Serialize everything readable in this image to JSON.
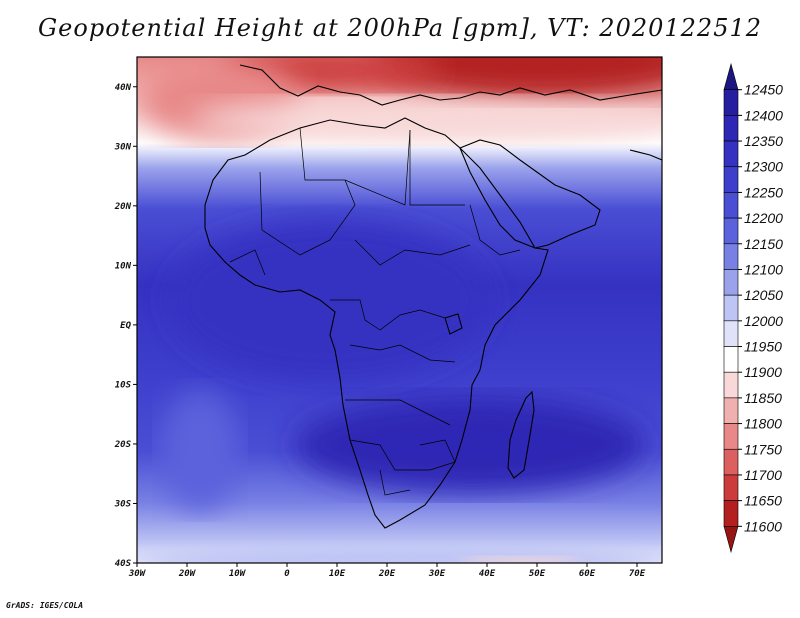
{
  "title": "Geopotential Height at 200hPa [gpm], VT: 2020122512",
  "footer": "GrADS: IGES/COLA",
  "map": {
    "lon_range": [
      -30,
      75
    ],
    "lat_range": [
      -40,
      45
    ],
    "x_ticks": [
      "30W",
      "20W",
      "10W",
      "0",
      "10E",
      "20E",
      "30E",
      "40E",
      "50E",
      "60E",
      "70E"
    ],
    "x_tick_values": [
      -30,
      -20,
      -10,
      0,
      10,
      20,
      30,
      40,
      50,
      60,
      70
    ],
    "y_ticks": [
      "40N",
      "30N",
      "20N",
      "10N",
      "EQ",
      "10S",
      "20S",
      "30S",
      "40S"
    ],
    "y_tick_values": [
      40,
      30,
      20,
      10,
      0,
      -10,
      -20,
      -30,
      -40
    ]
  },
  "colorbar": {
    "levels": [
      "12450",
      "12400",
      "12350",
      "12300",
      "12250",
      "12200",
      "12150",
      "12100",
      "12050",
      "12000",
      "11950",
      "11900",
      "11850",
      "11800",
      "11750",
      "11700",
      "11650",
      "11600"
    ],
    "colors": [
      "#1e1680",
      "#261ea0",
      "#2e26b4",
      "#3532c2",
      "#3d3ecc",
      "#4a4ed4",
      "#5c62dc",
      "#7880e4",
      "#9aa2ec",
      "#bec4f4",
      "#e0e2fa",
      "#ffffff",
      "#f8d8d8",
      "#f0b0b0",
      "#e88888",
      "#dc6060",
      "#cc3c3c",
      "#b42020",
      "#961414"
    ]
  }
}
